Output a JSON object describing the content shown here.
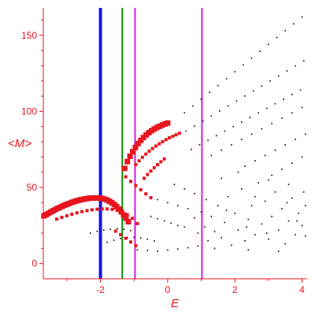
{
  "chart_data": {
    "type": "scatter",
    "title": "",
    "xlabel": "E",
    "ylabel": "<M>",
    "xlim": [
      -3.7,
      4.15
    ],
    "ylim": [
      -10,
      168
    ],
    "grid": false,
    "x_ticks": [
      -2,
      0,
      2,
      4
    ],
    "y_ticks": [
      0,
      50,
      100,
      150
    ],
    "axis_color": "#e8141e",
    "vertical_lines": [
      {
        "x": -2.0,
        "color": "#1414e6",
        "weight": "thick"
      },
      {
        "x": -1.35,
        "color": "#0a8c0a",
        "weight": "thin"
      },
      {
        "x": -0.97,
        "color": "#d21ed2",
        "weight": "thin"
      },
      {
        "x": 1.02,
        "color": "#d21ed2",
        "weight": "thin"
      }
    ],
    "series": [
      {
        "marker": "large",
        "color": "#e8141e",
        "points": [
          [
            -3.68,
            31.4
          ],
          [
            -3.62,
            32.1
          ],
          [
            -3.55,
            33.0
          ],
          [
            -3.48,
            33.8
          ],
          [
            -3.41,
            34.7
          ],
          [
            -3.34,
            35.5
          ],
          [
            -3.27,
            36.3
          ],
          [
            -3.2,
            37.0
          ],
          [
            -3.13,
            37.7
          ],
          [
            -3.06,
            38.4
          ],
          [
            -2.99,
            39.0
          ],
          [
            -2.92,
            39.6
          ],
          [
            -2.85,
            40.2
          ],
          [
            -2.78,
            40.7
          ],
          [
            -2.71,
            41.2
          ],
          [
            -2.64,
            41.6
          ],
          [
            -2.57,
            42.0
          ],
          [
            -2.5,
            42.3
          ],
          [
            -2.43,
            42.6
          ],
          [
            -2.36,
            42.8
          ],
          [
            -2.29,
            43.0
          ],
          [
            -2.22,
            43.1
          ],
          [
            -2.15,
            43.1
          ],
          [
            -2.08,
            43.1
          ],
          [
            -2.01,
            43.0
          ],
          [
            -1.94,
            42.7
          ],
          [
            -1.87,
            42.3
          ],
          [
            -1.8,
            41.7
          ],
          [
            -1.73,
            40.9
          ],
          [
            -1.66,
            40.0
          ],
          [
            -1.59,
            38.8
          ],
          [
            -1.52,
            37.4
          ],
          [
            -1.45,
            35.8
          ],
          [
            -1.38,
            34.0
          ],
          [
            -1.31,
            32.0
          ],
          [
            -1.24,
            29.8
          ],
          [
            -1.17,
            27.5
          ],
          [
            -1.28,
            62.5
          ],
          [
            -1.2,
            67.0
          ],
          [
            -1.12,
            70.5
          ],
          [
            -1.04,
            73.5
          ],
          [
            -0.96,
            76.3
          ],
          [
            -0.88,
            78.8
          ],
          [
            -0.8,
            80.9
          ],
          [
            -0.72,
            82.8
          ],
          [
            -0.64,
            84.5
          ],
          [
            -0.56,
            86.0
          ],
          [
            -0.48,
            87.3
          ],
          [
            -0.4,
            88.4
          ],
          [
            -0.32,
            89.4
          ],
          [
            -0.24,
            90.2
          ],
          [
            -0.16,
            91.0
          ],
          [
            -0.08,
            91.7
          ],
          [
            0.0,
            92.3
          ]
        ]
      },
      {
        "marker": "medium",
        "color": "#e8141e",
        "points": [
          [
            -3.3,
            29.2
          ],
          [
            -3.15,
            30.3
          ],
          [
            -3.0,
            31.4
          ],
          [
            -2.85,
            32.4
          ],
          [
            -2.7,
            33.3
          ],
          [
            -2.55,
            34.1
          ],
          [
            -2.4,
            34.8
          ],
          [
            -2.25,
            35.3
          ],
          [
            -2.1,
            35.7
          ],
          [
            -1.95,
            35.9
          ],
          [
            -1.8,
            35.9
          ],
          [
            -1.65,
            35.6
          ],
          [
            -1.5,
            34.9
          ],
          [
            -1.35,
            33.8
          ],
          [
            -1.2,
            32.1
          ],
          [
            -1.05,
            29.7
          ],
          [
            -0.9,
            26.3
          ],
          [
            -0.95,
            65.0
          ],
          [
            -0.85,
            67.5
          ],
          [
            -0.75,
            69.8
          ],
          [
            -0.65,
            71.9
          ],
          [
            -0.55,
            73.8
          ],
          [
            -0.45,
            75.6
          ],
          [
            -0.35,
            77.2
          ],
          [
            -0.25,
            78.7
          ],
          [
            -0.15,
            80.1
          ],
          [
            -0.05,
            81.4
          ],
          [
            0.05,
            82.6
          ],
          [
            0.15,
            83.6
          ],
          [
            0.25,
            84.6
          ],
          [
            0.35,
            85.6
          ],
          [
            -0.7,
            56.0
          ],
          [
            -0.6,
            58.5
          ],
          [
            -0.5,
            60.8
          ],
          [
            -0.4,
            63.0
          ],
          [
            -0.3,
            65.0
          ],
          [
            -0.2,
            66.9
          ],
          [
            -0.1,
            68.7
          ],
          [
            -1.25,
            57.0
          ],
          [
            -1.1,
            54.0
          ],
          [
            -0.95,
            51.2
          ],
          [
            -0.8,
            48.5
          ],
          [
            -0.65,
            45.8
          ],
          [
            -0.5,
            43.3
          ],
          [
            -1.55,
            21.3
          ],
          [
            -1.4,
            19.0
          ],
          [
            -1.25,
            16.6
          ],
          [
            -1.1,
            14.2
          ],
          [
            -0.95,
            11.8
          ]
        ]
      },
      {
        "marker": "small",
        "color": "#000000",
        "points": [
          [
            0.5,
            99.0
          ],
          [
            0.75,
            103.5
          ],
          [
            1.0,
            108.0
          ],
          [
            1.25,
            112.5
          ],
          [
            1.5,
            117.0
          ],
          [
            1.75,
            121.5
          ],
          [
            2.0,
            126.0
          ],
          [
            2.25,
            130.5
          ],
          [
            2.5,
            135.0
          ],
          [
            2.75,
            139.5
          ],
          [
            3.0,
            144.0
          ],
          [
            3.25,
            148.5
          ],
          [
            3.5,
            153.0
          ],
          [
            3.75,
            157.5
          ],
          [
            4.0,
            162.0
          ],
          [
            0.55,
            87.0
          ],
          [
            0.8,
            90.3
          ],
          [
            1.05,
            93.6
          ],
          [
            1.3,
            96.9
          ],
          [
            1.55,
            100.2
          ],
          [
            1.8,
            103.5
          ],
          [
            2.05,
            106.8
          ],
          [
            2.3,
            110.1
          ],
          [
            2.55,
            113.4
          ],
          [
            2.8,
            116.7
          ],
          [
            3.05,
            120.0
          ],
          [
            3.3,
            123.3
          ],
          [
            3.55,
            126.6
          ],
          [
            3.8,
            129.9
          ],
          [
            4.05,
            133.2
          ],
          [
            0.7,
            75.0
          ],
          [
            0.95,
            78.0
          ],
          [
            1.2,
            81.0
          ],
          [
            1.45,
            84.0
          ],
          [
            1.7,
            87.0
          ],
          [
            1.95,
            90.0
          ],
          [
            2.2,
            93.0
          ],
          [
            2.45,
            96.0
          ],
          [
            2.7,
            99.0
          ],
          [
            2.95,
            102.0
          ],
          [
            3.2,
            105.0
          ],
          [
            3.45,
            108.0
          ],
          [
            3.7,
            111.0
          ],
          [
            3.95,
            114.0
          ],
          [
            1.3,
            71.0
          ],
          [
            1.6,
            74.5
          ],
          [
            1.9,
            78.0
          ],
          [
            2.2,
            81.5
          ],
          [
            2.5,
            85.0
          ],
          [
            2.8,
            88.5
          ],
          [
            3.1,
            92.0
          ],
          [
            3.4,
            95.5
          ],
          [
            3.7,
            99.0
          ],
          [
            4.0,
            102.5
          ],
          [
            2.3,
            64.0
          ],
          [
            2.6,
            67.5
          ],
          [
            2.9,
            71.0
          ],
          [
            3.2,
            74.5
          ],
          [
            3.5,
            78.0
          ],
          [
            3.8,
            81.5
          ],
          [
            4.1,
            85.0
          ],
          [
            3.1,
            58.0
          ],
          [
            3.4,
            62.0
          ],
          [
            3.7,
            66.0
          ],
          [
            4.0,
            70.0
          ],
          [
            -2.3,
            20.0
          ],
          [
            -2.1,
            21.2
          ],
          [
            -1.9,
            22.0
          ],
          [
            -1.7,
            22.5
          ],
          [
            -1.5,
            22.8
          ],
          [
            -1.3,
            22.5
          ],
          [
            -1.1,
            21.6
          ],
          [
            -1.8,
            14.0
          ],
          [
            -1.6,
            15.3
          ],
          [
            -1.4,
            16.5
          ],
          [
            -1.2,
            17.0
          ],
          [
            -1.0,
            17.2
          ],
          [
            -0.8,
            16.8
          ],
          [
            -0.6,
            16.0
          ],
          [
            -0.4,
            14.8
          ],
          [
            -0.9,
            9.0
          ],
          [
            -0.6,
            8.5
          ],
          [
            -0.3,
            8.2
          ],
          [
            0.0,
            8.8
          ],
          [
            0.3,
            9.5
          ],
          [
            0.6,
            10.4
          ],
          [
            0.9,
            11.5
          ],
          [
            -0.5,
            31.0
          ],
          [
            -0.3,
            29.5
          ],
          [
            -0.1,
            28.0
          ],
          [
            0.1,
            26.5
          ],
          [
            0.3,
            25.0
          ],
          [
            0.5,
            24.0
          ],
          [
            -0.3,
            42.0
          ],
          [
            0.0,
            40.0
          ],
          [
            0.3,
            38.0
          ],
          [
            0.6,
            36.0
          ],
          [
            0.2,
            52.0
          ],
          [
            0.5,
            49.0
          ],
          [
            0.8,
            46.0
          ],
          [
            0.9,
            20.0
          ],
          [
            1.1,
            24.0
          ],
          [
            1.2,
            15.0
          ],
          [
            1.3,
            31.0
          ],
          [
            1.4,
            21.0
          ],
          [
            1.5,
            38.0
          ],
          [
            1.6,
            17.0
          ],
          [
            1.7,
            27.0
          ],
          [
            1.8,
            44.0
          ],
          [
            1.9,
            12.0
          ],
          [
            2.0,
            33.0
          ],
          [
            2.1,
            22.0
          ],
          [
            2.2,
            49.0
          ],
          [
            2.3,
            15.0
          ],
          [
            2.4,
            29.0
          ],
          [
            2.5,
            38.0
          ],
          [
            2.6,
            19.0
          ],
          [
            2.7,
            53.0
          ],
          [
            2.8,
            26.0
          ],
          [
            2.9,
            41.0
          ],
          [
            3.0,
            16.0
          ],
          [
            3.1,
            31.0
          ],
          [
            3.2,
            47.0
          ],
          [
            3.3,
            22.0
          ],
          [
            3.4,
            36.0
          ],
          [
            3.5,
            13.0
          ],
          [
            3.6,
            28.0
          ],
          [
            3.7,
            43.0
          ],
          [
            3.8,
            19.0
          ],
          [
            3.9,
            33.0
          ],
          [
            4.0,
            25.0
          ],
          [
            4.1,
            38.0
          ],
          [
            1.0,
            34.0
          ],
          [
            1.6,
            56.0
          ],
          [
            2.1,
            60.0
          ],
          [
            2.6,
            44.0
          ],
          [
            3.0,
            55.0
          ],
          [
            3.6,
            52.0
          ],
          [
            4.05,
            47.0
          ],
          [
            3.3,
            8.0
          ],
          [
            2.4,
            9.0
          ],
          [
            1.4,
            10.0
          ],
          [
            0.8,
            30.0
          ],
          [
            1.15,
            42.0
          ],
          [
            1.75,
            35.0
          ],
          [
            2.35,
            24.0
          ],
          [
            2.95,
            20.0
          ],
          [
            3.55,
            40.0
          ],
          [
            3.85,
            28.0
          ],
          [
            4.1,
            18.0
          ]
        ]
      }
    ]
  }
}
